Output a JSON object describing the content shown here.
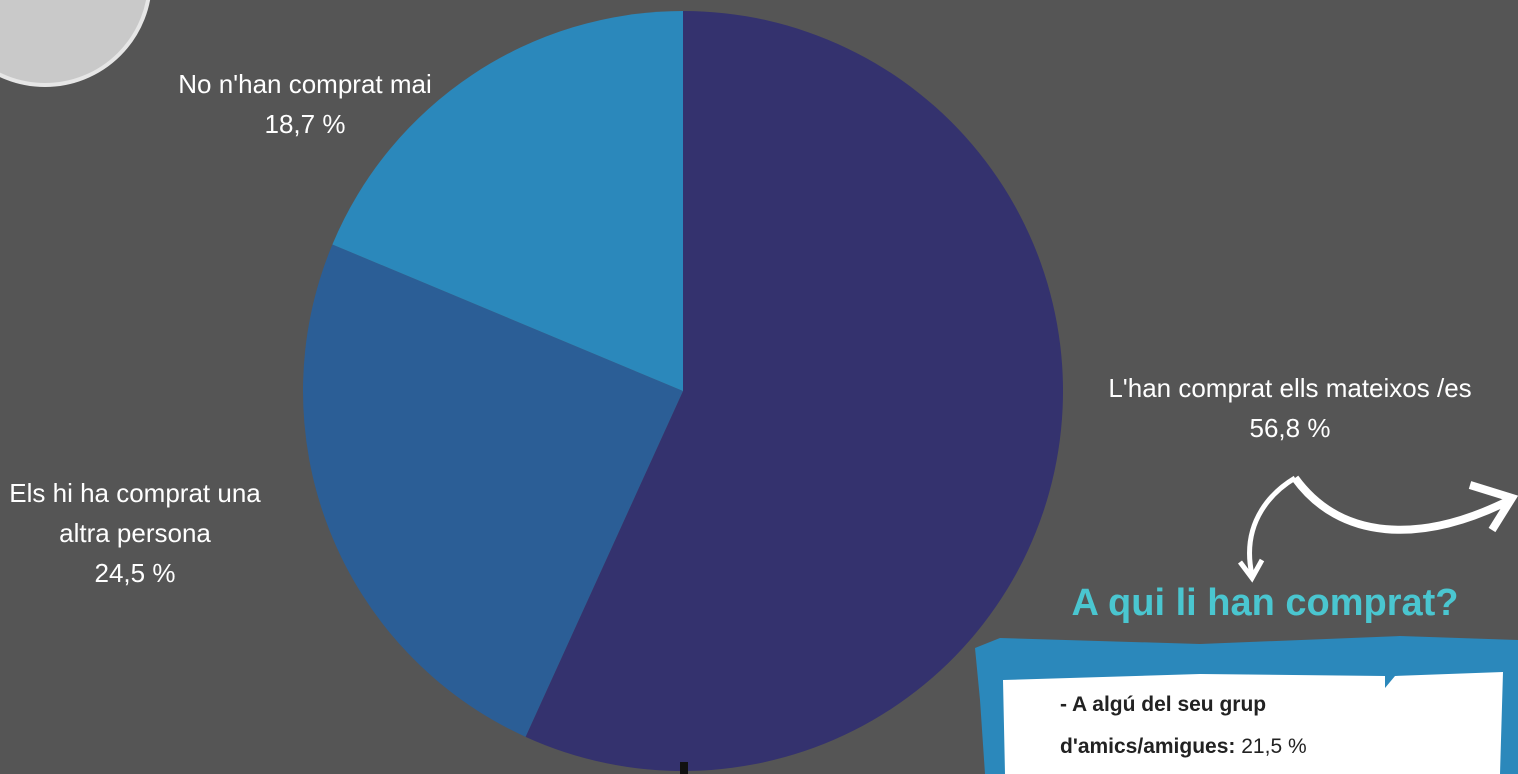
{
  "chart_data": {
    "type": "pie",
    "categories": [
      "L'han comprat ells mateixos /es",
      "Els hi ha comprat una altra persona",
      "No n'han comprat mai"
    ],
    "values": [
      56.8,
      24.5,
      18.7
    ],
    "value_labels": [
      "56,8 %",
      "24,5 %",
      "18,7 %"
    ],
    "colors": [
      "#34326e",
      "#2b5e96",
      "#2b88bb"
    ]
  },
  "panel": {
    "title": "A qui li han comprat?",
    "items": [
      {
        "label": "- A algú del seu grup d'amics/amigues:",
        "value": "21,5 %"
      }
    ]
  }
}
